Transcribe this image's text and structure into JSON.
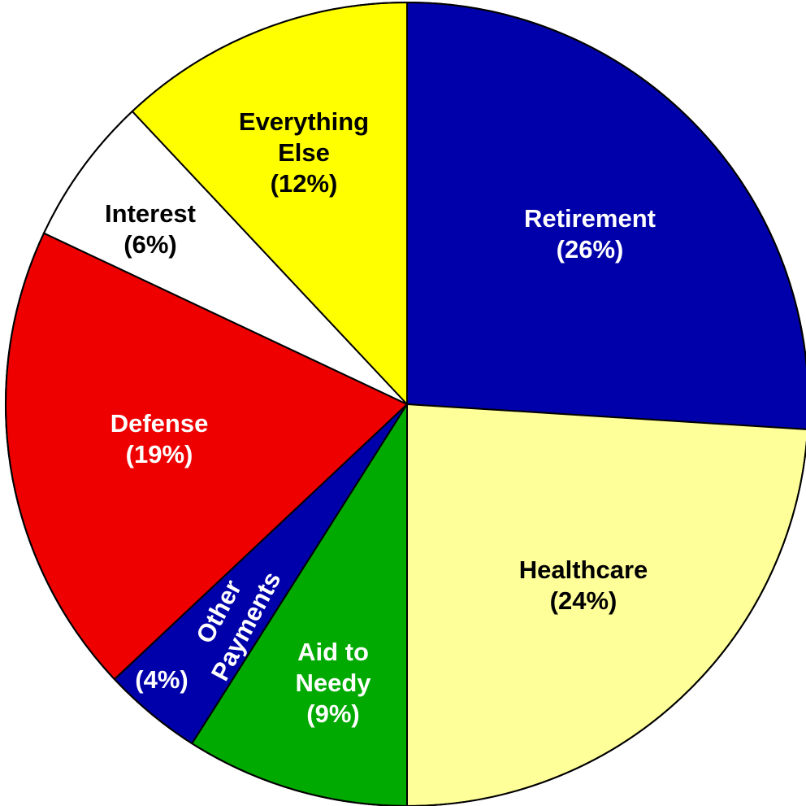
{
  "chart_data": {
    "type": "pie",
    "title": "",
    "start_angle_deg": 0,
    "direction": "clockwise",
    "slices": [
      {
        "label": "Retirement",
        "value": 26,
        "percent_label": "(26%)",
        "color": "#0000AA",
        "text_color": "#FFFFFF"
      },
      {
        "label": "Healthcare",
        "value": 24,
        "percent_label": "(24%)",
        "color": "#FFFF99",
        "text_color": "#000000"
      },
      {
        "label": "Aid to Needy",
        "value": 9,
        "percent_label": "(9%)",
        "color": "#00AA00",
        "text_color": "#FFFFFF"
      },
      {
        "label": "Other Payments",
        "value": 4,
        "percent_label": "(4%)",
        "color": "#0000AA",
        "text_color": "#FFFFFF"
      },
      {
        "label": "Defense",
        "value": 19,
        "percent_label": "(19%)",
        "color": "#EE0000",
        "text_color": "#FFFFFF"
      },
      {
        "label": "Interest",
        "value": 6,
        "percent_label": "(6%)",
        "color": "#FFFFFF",
        "text_color": "#000000"
      },
      {
        "label": "Everything Else",
        "value": 12,
        "percent_label": "(12%)",
        "color": "#FFFF00",
        "text_color": "#000000"
      }
    ]
  }
}
